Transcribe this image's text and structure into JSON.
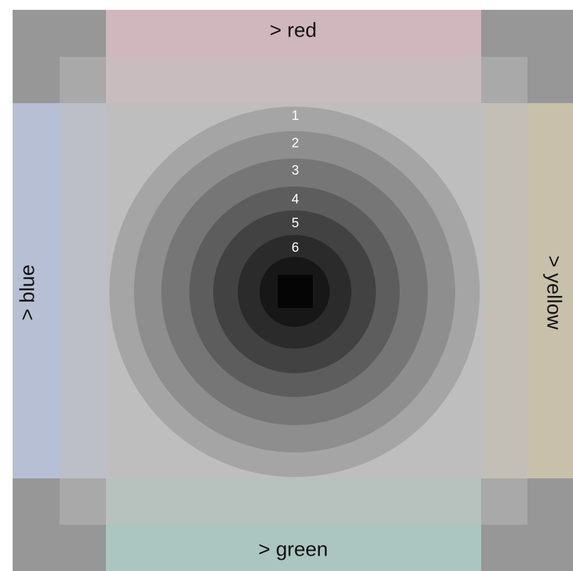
{
  "labels": {
    "top": "> red",
    "bottom": "> green",
    "left": "> blue",
    "right": "> yellow"
  },
  "colors": {
    "corner_outer": "#979797",
    "corner_inner": "#a9a9a9",
    "center": "#bebebe",
    "red_outer": "#d0b6bd",
    "red_inner": "#c8bcbf",
    "green_outer": "#abc6c0",
    "green_inner": "#b7c1be",
    "blue_outer": "#b7bfd4",
    "blue_inner": "#bcbfc8",
    "yellow_outer": "#c8c0aa",
    "yellow_inner": "#c3bfb6",
    "rings": [
      "#a5a5a5",
      "#8e8e8e",
      "#767676",
      "#5d5d5d",
      "#424242",
      "#2b2b2b",
      "#171717"
    ],
    "core_square": "#050505"
  },
  "rings": [
    {
      "label": "1"
    },
    {
      "label": "2"
    },
    {
      "label": "3"
    },
    {
      "label": "4"
    },
    {
      "label": "5"
    },
    {
      "label": "6"
    }
  ]
}
